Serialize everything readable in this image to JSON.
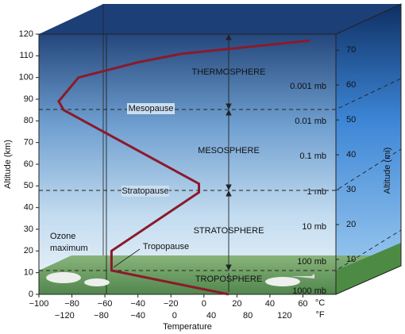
{
  "chart_data": {
    "type": "line",
    "x": [
      15,
      -56,
      -56,
      -3,
      -3,
      -85,
      -88,
      -76,
      -40,
      -13,
      64
    ],
    "values": [
      0,
      11,
      20,
      47,
      51,
      85,
      89,
      100,
      107,
      111,
      117
    ],
    "color": "#8b1a2b",
    "xlabel": "Temperature",
    "xunit": "°C",
    "x2unit": "°F",
    "ylabel": "Altitude (km)",
    "y2label": "Altitude (mi)",
    "xlim": [
      -100,
      80
    ],
    "xticks": [
      {
        "value": -100,
        "label": "−100"
      },
      {
        "value": -80,
        "label": "−80"
      },
      {
        "value": -60,
        "label": "−60"
      },
      {
        "value": -40,
        "label": "−40"
      },
      {
        "value": -20,
        "label": "−20"
      },
      0,
      20,
      40,
      60
    ],
    "x2lim": [
      -148,
      176
    ],
    "x2ticks": [
      {
        "value": -120,
        "label": "−120"
      },
      {
        "value": -80,
        "label": "−80"
      },
      {
        "value": -40,
        "label": "−40"
      },
      0,
      40,
      80,
      120
    ],
    "ylim": [
      0,
      120
    ],
    "yticks": [
      0,
      10,
      20,
      30,
      40,
      50,
      60,
      70,
      80,
      90,
      100,
      110,
      120
    ],
    "y2lim": [
      0,
      74.6
    ],
    "y2ticks": [
      10,
      20,
      30,
      40,
      50,
      60,
      70
    ],
    "layers": [
      "THERMOSPHERE",
      "MESOSPHERE",
      "STRATOSPHERE",
      "TROPOSPHERE"
    ],
    "pauses": [
      "Mesopause",
      "Stratopause",
      "Tropopause"
    ],
    "pressures": [
      "0.001 mb",
      "0.01 mb",
      "0.1 mb",
      "1 mb",
      "10 mb",
      "100 mb",
      "1000 mb"
    ],
    "ozone_label": [
      "Ozone",
      "maximum"
    ]
  }
}
